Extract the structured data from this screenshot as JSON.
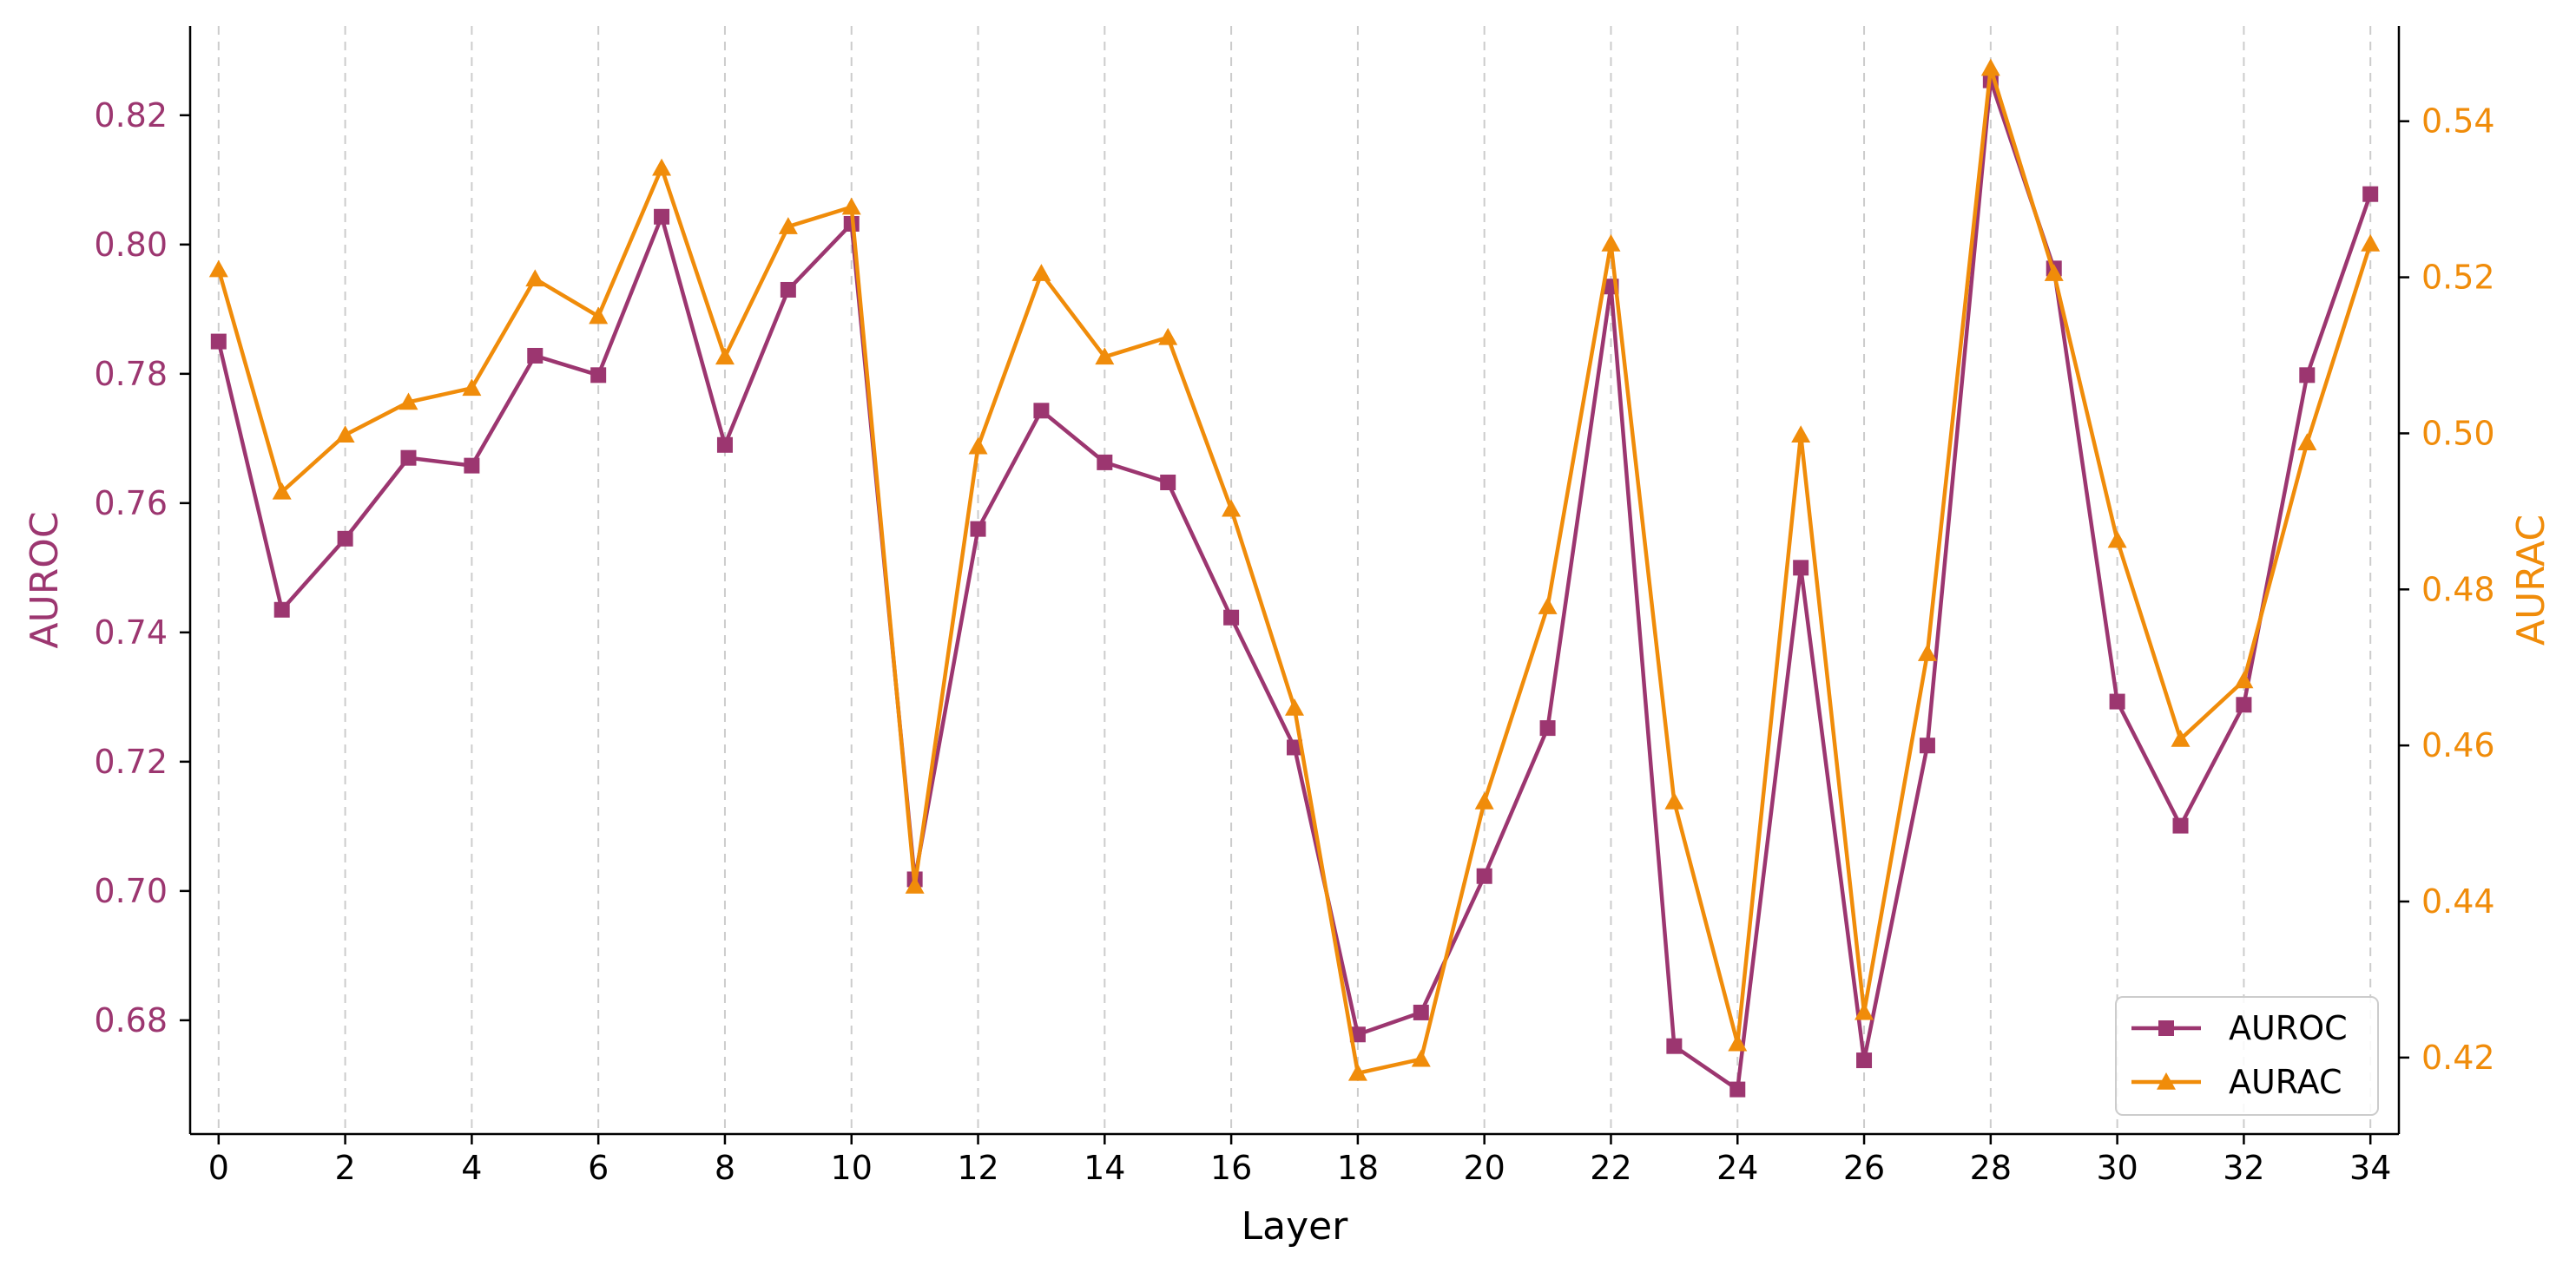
{
  "chart_data": {
    "type": "line",
    "xlabel": "Layer",
    "ylabel_left": "AUROC",
    "ylabel_right": "AURAC",
    "x": [
      0,
      1,
      2,
      3,
      4,
      5,
      6,
      7,
      8,
      9,
      10,
      11,
      12,
      13,
      14,
      15,
      16,
      17,
      18,
      19,
      20,
      21,
      22,
      23,
      24,
      25,
      26,
      27,
      28,
      29,
      30,
      31,
      32,
      33,
      34
    ],
    "xticks": [
      0,
      2,
      4,
      6,
      8,
      10,
      12,
      14,
      16,
      18,
      20,
      22,
      24,
      26,
      28,
      30,
      32,
      34
    ],
    "xlim": [
      -0.45,
      34.45
    ],
    "ylim_left": [
      0.6624,
      0.8338
    ],
    "ylim_right": [
      0.4102,
      0.5522
    ],
    "yticks_left": [
      0.68,
      0.7,
      0.72,
      0.74,
      0.76,
      0.78,
      0.8,
      0.82
    ],
    "ytick_labels_left": [
      "0.68",
      "0.70",
      "0.72",
      "0.74",
      "0.76",
      "0.78",
      "0.80",
      "0.82"
    ],
    "yticks_right": [
      0.42,
      0.44,
      0.46,
      0.48,
      0.5,
      0.52,
      0.54
    ],
    "ytick_labels_right": [
      "0.42",
      "0.44",
      "0.46",
      "0.48",
      "0.50",
      "0.52",
      "0.54"
    ],
    "grid": "vertical dashed at x ticks",
    "legend_position": "bottom-right",
    "colors": {
      "auroc": "#9c3670",
      "aurac": "#f08c0a"
    },
    "series": [
      {
        "name": "AUROC",
        "axis": "left",
        "marker": "square",
        "color": "#9c3670",
        "values": [
          0.785,
          0.7435,
          0.7545,
          0.767,
          0.7658,
          0.7828,
          0.7798,
          0.8043,
          0.769,
          0.793,
          0.8032,
          0.7018,
          0.756,
          0.7743,
          0.7663,
          0.7632,
          0.7423,
          0.7222,
          0.6778,
          0.6812,
          0.7023,
          0.7252,
          0.7935,
          0.676,
          0.6693,
          0.75,
          0.6738,
          0.7225,
          0.8254,
          0.7963,
          0.7293,
          0.7101,
          0.7288,
          0.7798,
          0.8078
        ]
      },
      {
        "name": "AURAC",
        "axis": "right",
        "marker": "triangle",
        "color": "#f08c0a",
        "values": [
          0.521,
          0.4925,
          0.4998,
          0.504,
          0.5058,
          0.5198,
          0.515,
          0.534,
          0.5098,
          0.5265,
          0.529,
          0.442,
          0.4983,
          0.5205,
          0.5098,
          0.5123,
          0.4903,
          0.4648,
          0.418,
          0.4198,
          0.4528,
          0.4778,
          0.5243,
          0.4528,
          0.4218,
          0.4998,
          0.4258,
          0.4718,
          0.5468,
          0.5205,
          0.4863,
          0.4608,
          0.4683,
          0.4988,
          0.5243
        ]
      }
    ]
  }
}
